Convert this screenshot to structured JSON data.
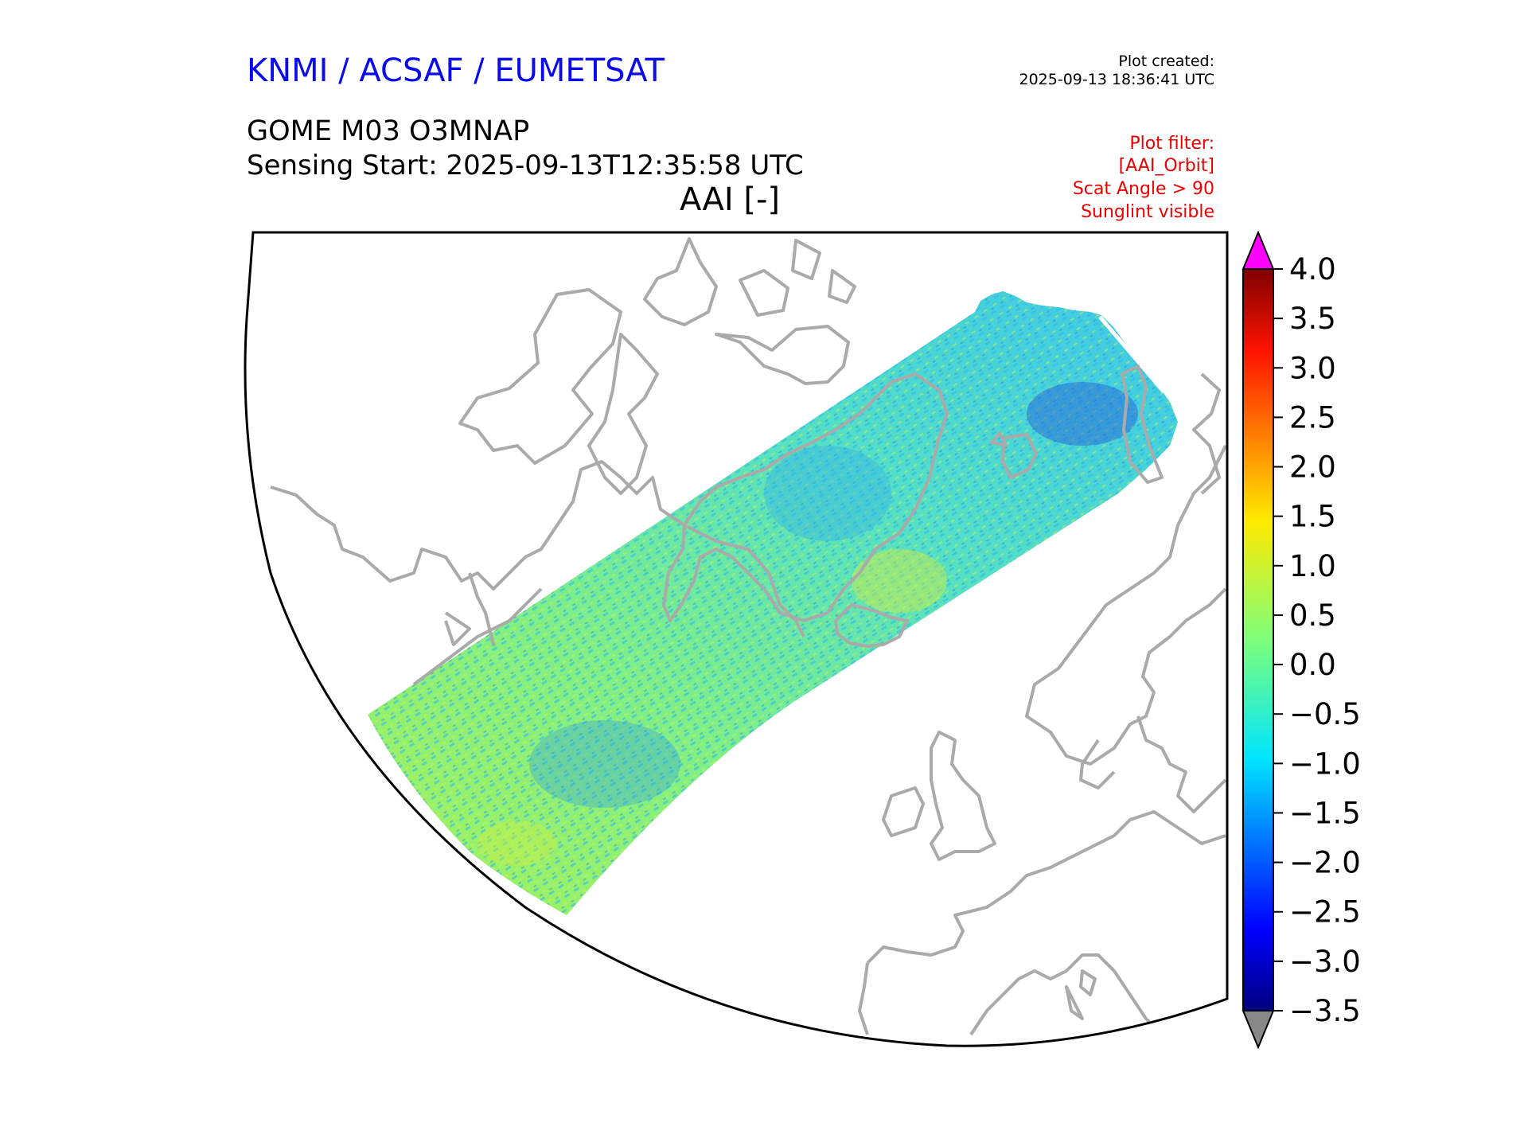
{
  "header": {
    "agency": "KNMI / ACSAF / EUMETSAT",
    "plot_created_label": "Plot created:",
    "plot_created_time": "2025-09-13 18:36:41 UTC",
    "product": "GOME M03 O3MNAP",
    "sensing_start": "Sensing Start: 2025-09-13T12:35:58 UTC",
    "map_title": "AAI [-]",
    "filter_lines": [
      "Plot filter:",
      "[AAI_Orbit]",
      "Scat Angle > 90",
      "Sunglint visible"
    ]
  },
  "colorbar": {
    "ticks": [
      "4.0",
      "3.5",
      "3.0",
      "2.5",
      "2.0",
      "1.5",
      "1.0",
      "0.5",
      "0.0",
      "−0.5",
      "−1.0",
      "−1.5",
      "−2.0",
      "−2.5",
      "−3.0",
      "−3.5"
    ],
    "min": -3.5,
    "max": 4.0,
    "colormap": "jet",
    "over_color": "#ff00ff",
    "under_color": "#888888"
  },
  "map": {
    "coastline_color": "#aaaaaa",
    "frame_color": "#000000"
  }
}
